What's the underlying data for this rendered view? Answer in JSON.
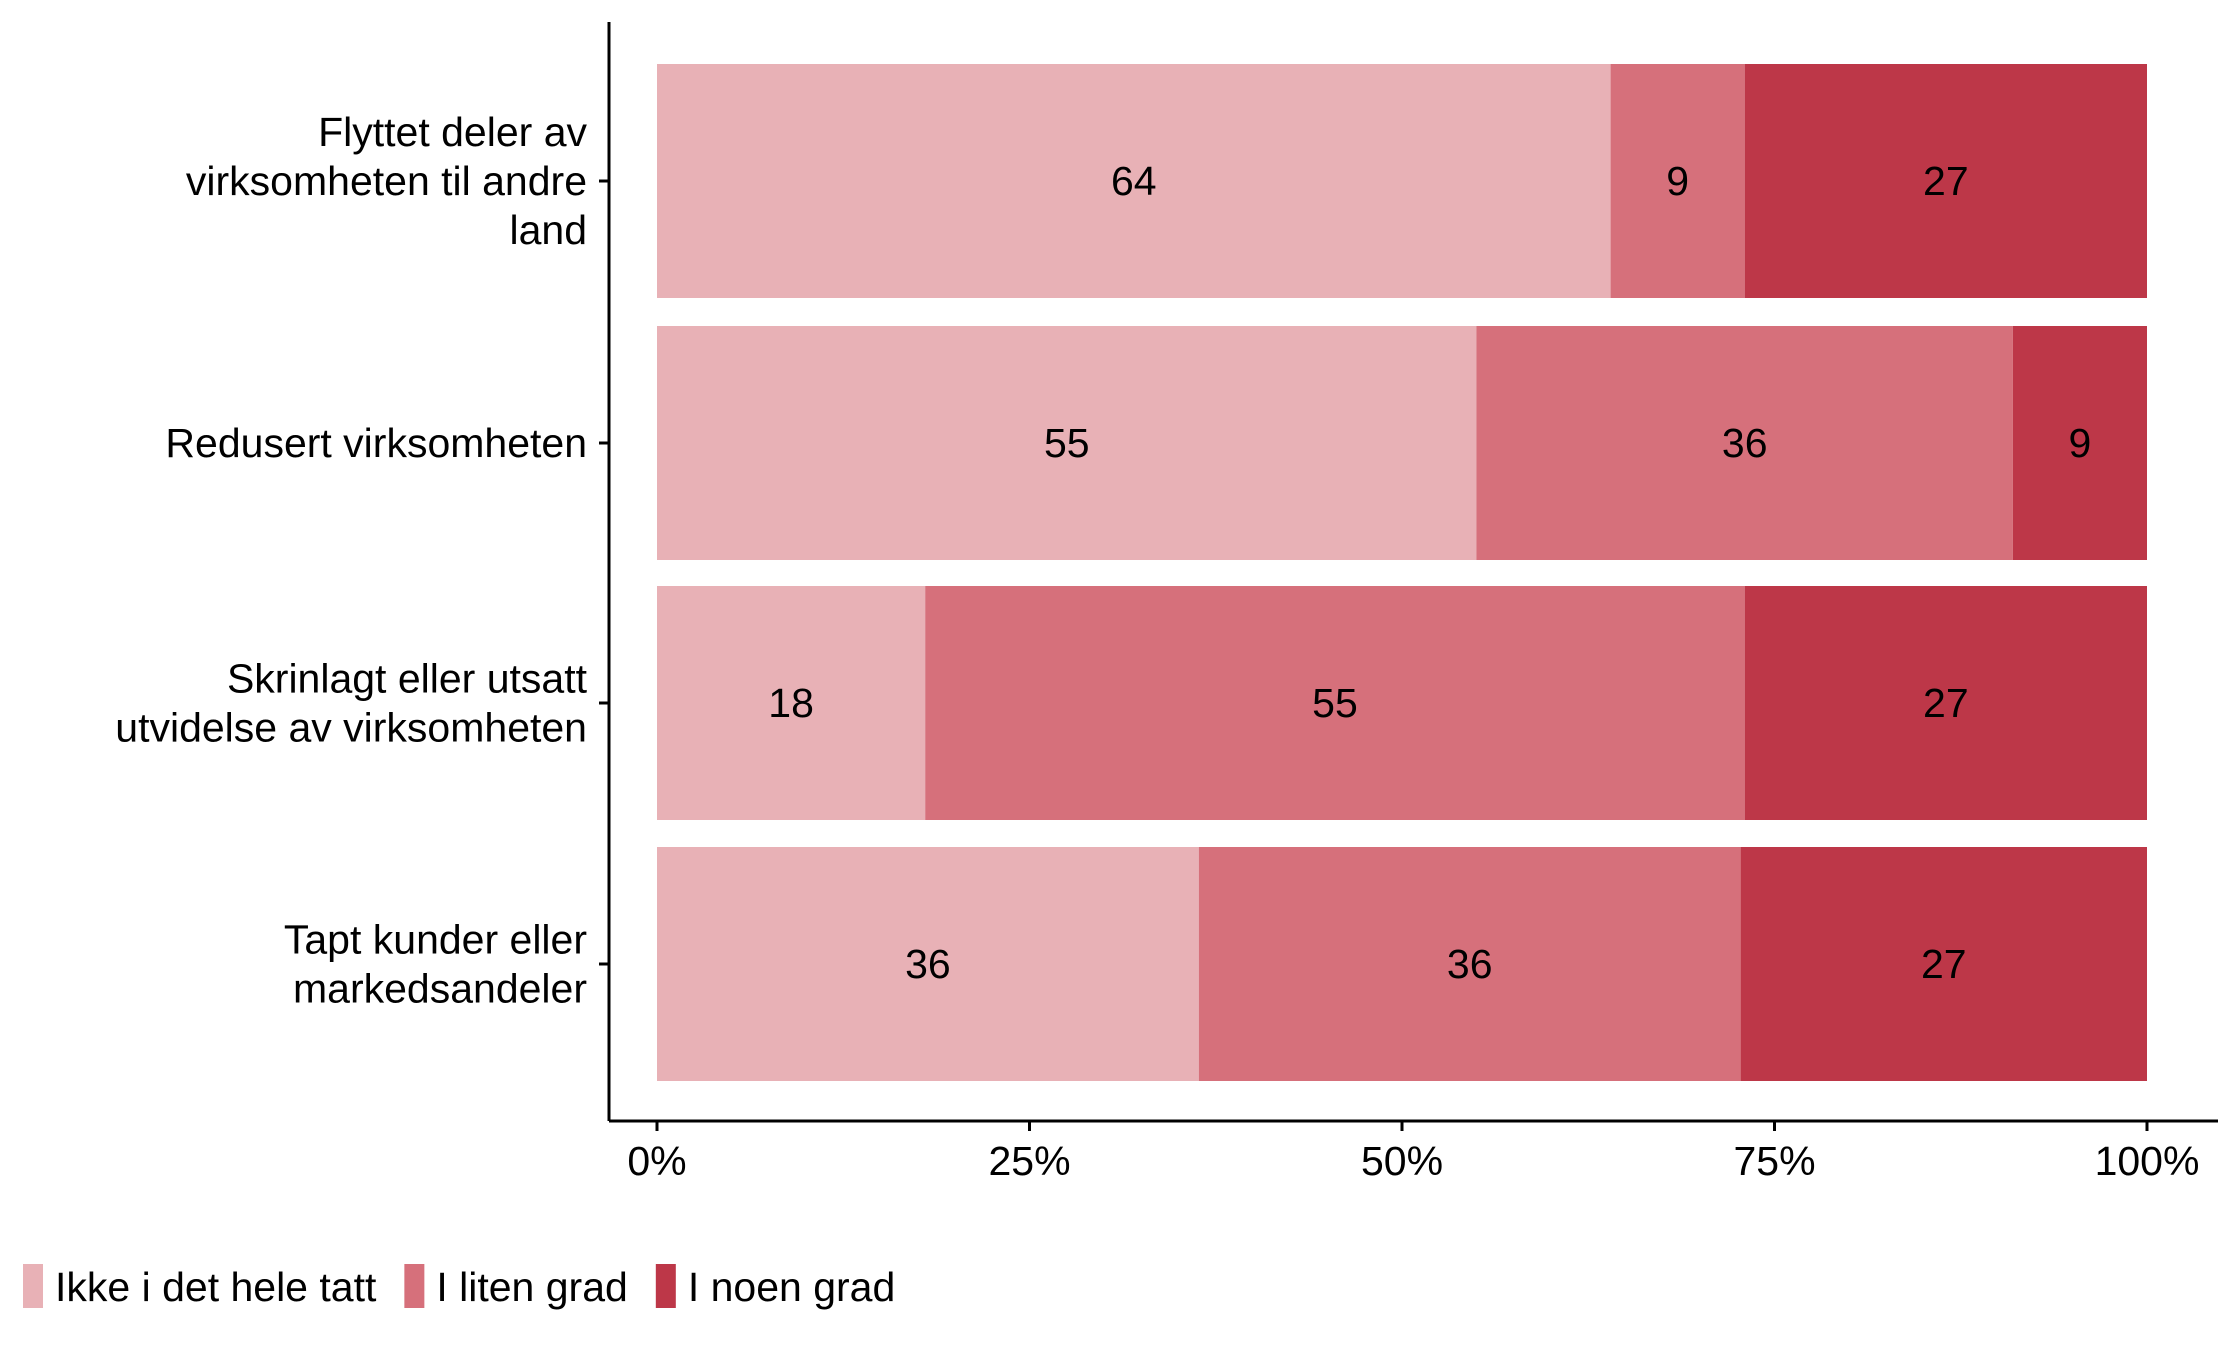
{
  "chart_data": {
    "type": "bar",
    "orientation": "horizontal",
    "stacked": true,
    "categories": [
      [
        "Flyttet deler av",
        "virksomheten til andre",
        "land"
      ],
      [
        "Redusert virksomheten"
      ],
      [
        "Skrinlagt eller utsatt",
        "utvidelse av virksomheten"
      ],
      [
        "Tapt kunder eller",
        "markedsandeler"
      ]
    ],
    "series": [
      {
        "name": "Ikke i det hele tatt",
        "color": "#E8B1B6",
        "label_color": "#000000",
        "values": [
          64,
          55,
          18,
          36
        ]
      },
      {
        "name": "I liten grad",
        "color": "#D6707B",
        "label_color": "#000000",
        "values": [
          9,
          36,
          55,
          36
        ]
      },
      {
        "name": "I noen grad",
        "color": "#BD3748",
        "label_color": "#FFFFFF",
        "values": [
          27,
          9,
          27,
          27
        ]
      }
    ],
    "xticks": [
      "0%",
      "25%",
      "50%",
      "75%",
      "100%"
    ],
    "xlim": [
      0,
      100
    ],
    "xlabel": "",
    "ylabel": "",
    "legend_position": "bottom-left",
    "grid": false
  }
}
